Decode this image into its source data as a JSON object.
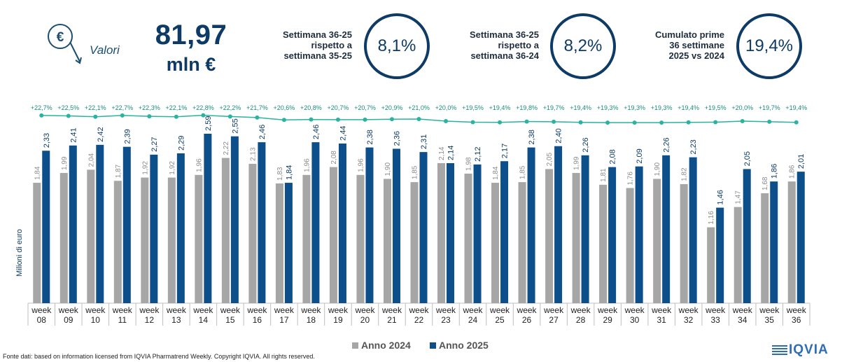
{
  "header": {
    "icon_name": "euro-down-icon",
    "label": "Valori",
    "value": "81,97",
    "unit": "mln €"
  },
  "stats": [
    {
      "text": [
        "Settimana 36-25",
        "rispetto a",
        "settimana 35-25"
      ],
      "value": "8,1%"
    },
    {
      "text": [
        "Settimana 36-25",
        "rispetto a",
        "settimana 36-24"
      ],
      "value": "8,2%"
    },
    {
      "text": [
        "Cumulato prime",
        "36 settimane",
        "2025 vs 2024"
      ],
      "value": "19,4%"
    }
  ],
  "chart_data": {
    "type": "bar",
    "ylabel": "Milioni di euro",
    "categories": [
      "week 08",
      "week 09",
      "week 10",
      "week 11",
      "week 12",
      "week 13",
      "week 14",
      "week 15",
      "week 16",
      "week 17",
      "week 18",
      "week 19",
      "week 20",
      "week 21",
      "week 22",
      "week 23",
      "week 24",
      "week 25",
      "week 26",
      "week 27",
      "week 28",
      "week 29",
      "week 30",
      "week 31",
      "week 32",
      "week 33",
      "week 34",
      "week 35",
      "week 36"
    ],
    "series": [
      {
        "name": "Anno 2024",
        "color": "#a6a6a6",
        "values": [
          1.84,
          1.99,
          2.04,
          1.87,
          1.92,
          1.92,
          1.96,
          2.22,
          2.13,
          1.83,
          1.96,
          2.08,
          1.96,
          1.9,
          1.85,
          2.14,
          1.98,
          1.84,
          1.85,
          2.05,
          1.99,
          1.81,
          1.76,
          1.9,
          1.82,
          1.16,
          1.47,
          1.68,
          1.86
        ],
        "labels": [
          "1,84",
          "1,99",
          "2,04",
          "1,87",
          "1,92",
          "1,92",
          "1,96",
          "2,22",
          "2,13",
          "1,83",
          "1,96",
          "2,08",
          "1,96",
          "1,90",
          "1,85",
          "2,14",
          "1,98",
          "1,84",
          "1,85",
          "2,05",
          "1,99",
          "1,81",
          "1,76",
          "1,90",
          "1,82",
          "1,16",
          "1,47",
          "1,68",
          "1,86"
        ]
      },
      {
        "name": "Anno 2025",
        "color": "#0d4f8b",
        "values": [
          2.33,
          2.41,
          2.42,
          2.39,
          2.27,
          2.29,
          2.59,
          2.55,
          2.46,
          1.84,
          2.46,
          2.44,
          2.38,
          2.36,
          2.31,
          2.14,
          2.12,
          2.17,
          2.38,
          2.4,
          2.26,
          2.08,
          2.09,
          2.26,
          2.23,
          1.46,
          2.05,
          1.86,
          2.01
        ],
        "labels": [
          "2,33",
          "2,41",
          "2,42",
          "2,39",
          "2,27",
          "2,29",
          "2,59",
          "2,55",
          "2,46",
          "1,84",
          "2,46",
          "2,44",
          "2,38",
          "2,36",
          "2,31",
          "2,14",
          "2,12",
          "2,17",
          "2,38",
          "2,40",
          "2,26",
          "2,08",
          "2,09",
          "2,26",
          "2,23",
          "1,46",
          "2,05",
          "1,86",
          "2,01"
        ]
      }
    ],
    "share_line": {
      "color": "#2ab3a0",
      "values": [
        22.7,
        22.5,
        22.1,
        22.7,
        22.3,
        22.1,
        22.8,
        22.2,
        21.7,
        20.6,
        20.8,
        20.7,
        20.7,
        20.9,
        21.0,
        20.0,
        19.5,
        19.4,
        19.8,
        19.7,
        19.4,
        19.3,
        19.3,
        19.3,
        19.4,
        19.5,
        20.0,
        19.7,
        19.4
      ],
      "labels": [
        "+22,7%",
        "+22,5%",
        "+22,1%",
        "+22,7%",
        "+22,3%",
        "+22,1%",
        "+22,8%",
        "+22,2%",
        "+21,7%",
        "+20,6%",
        "+20,8%",
        "+20,7%",
        "+20,7%",
        "+20,9%",
        "+21,0%",
        "+20,0%",
        "+19,5%",
        "+19,4%",
        "+19,8%",
        "+19,7%",
        "+19,4%",
        "+19,3%",
        "+19,3%",
        "+19,3%",
        "+19,4%",
        "+19,5%",
        "+20,0%",
        "+19,7%",
        "+19,4%"
      ]
    },
    "ylim": [
      0,
      3.0
    ],
    "legend_position": "bottom"
  },
  "footer": {
    "source": "Fonte dati: based on information licensed from IQVIA Pharmatrend Weekly. Copyright IQVIA. All rights reserved.",
    "logo": "IQVIA"
  }
}
